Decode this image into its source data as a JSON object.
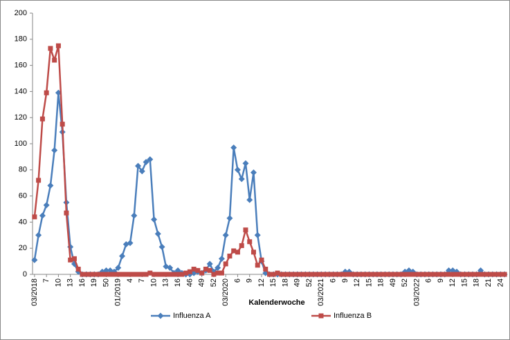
{
  "chart_data": {
    "type": "line",
    "x_label": "Kalenderwoche",
    "categories": [
      "03/2018",
      null,
      null,
      "7",
      null,
      null,
      "10",
      null,
      null,
      "13",
      null,
      null,
      "16",
      null,
      null,
      "19",
      null,
      null,
      "50",
      null,
      null,
      "01/2019",
      null,
      null,
      "4",
      null,
      null,
      "7",
      null,
      null,
      "10",
      null,
      null,
      "13",
      null,
      null,
      "16",
      null,
      null,
      "46",
      null,
      null,
      "49",
      null,
      null,
      "52",
      null,
      null,
      "03/2020",
      null,
      null,
      "6",
      null,
      null,
      "9",
      null,
      null,
      "12",
      null,
      null,
      "15",
      null,
      null,
      "18",
      null,
      null,
      "49",
      null,
      null,
      "52",
      null,
      null,
      "03/2021",
      null,
      null,
      "6",
      null,
      null,
      "9",
      null,
      null,
      "12",
      null,
      null,
      "15",
      null,
      null,
      "18",
      null,
      null,
      "49",
      null,
      null,
      "52",
      null,
      null,
      "03/2022",
      null,
      null,
      "6",
      null,
      null,
      "9",
      null,
      null,
      "12",
      null,
      null,
      "15",
      null,
      null,
      "18",
      null,
      null,
      "21",
      null,
      null,
      "24",
      null
    ],
    "series": [
      {
        "name": "Influenza A",
        "color": "#4a7ebb",
        "marker": "diamond",
        "values": [
          11,
          30,
          45,
          53,
          68,
          95,
          139,
          109,
          55,
          21,
          8,
          2,
          0,
          0,
          0,
          0,
          0,
          2,
          3,
          3,
          2,
          5,
          14,
          23,
          24,
          45,
          83,
          79,
          86,
          88,
          42,
          31,
          21,
          6,
          5,
          1,
          3,
          1,
          0,
          0,
          1,
          2,
          1,
          3,
          8,
          2,
          5,
          12,
          30,
          43,
          97,
          80,
          73,
          85,
          57,
          78,
          30,
          10,
          1,
          0,
          0,
          0,
          0,
          0,
          0,
          0,
          0,
          0,
          0,
          0,
          0,
          0,
          0,
          0,
          0,
          0,
          0,
          0,
          2,
          2,
          0,
          0,
          0,
          0,
          0,
          0,
          0,
          0,
          0,
          0,
          0,
          0,
          0,
          2,
          3,
          2,
          0,
          0,
          0,
          0,
          0,
          0,
          0,
          0,
          3,
          3,
          2,
          0,
          0,
          0,
          0,
          0,
          3,
          0,
          0,
          0,
          0,
          0,
          0
        ]
      },
      {
        "name": "Influenza B",
        "color": "#be4b48",
        "marker": "square",
        "values": [
          44,
          72,
          119,
          139,
          173,
          164,
          175,
          115,
          47,
          11,
          12,
          4,
          0,
          0,
          0,
          0,
          0,
          0,
          0,
          0,
          0,
          0,
          0,
          0,
          0,
          0,
          0,
          0,
          0,
          1,
          0,
          0,
          0,
          0,
          0,
          0,
          0,
          0,
          1,
          2,
          4,
          3,
          1,
          4,
          3,
          0,
          1,
          1,
          8,
          14,
          18,
          17,
          22,
          34,
          25,
          17,
          7,
          11,
          4,
          0,
          0,
          1,
          0,
          0,
          0,
          0,
          0,
          0,
          0,
          0,
          0,
          0,
          0,
          0,
          0,
          0,
          0,
          0,
          0,
          0,
          0,
          0,
          0,
          0,
          0,
          0,
          0,
          0,
          0,
          0,
          0,
          0,
          0,
          0,
          0,
          0,
          0,
          0,
          0,
          0,
          0,
          0,
          0,
          0,
          0,
          0,
          0,
          0,
          0,
          0,
          0,
          0,
          0,
          0,
          0,
          0,
          0,
          0,
          0
        ]
      }
    ],
    "ylim": [
      0,
      200
    ],
    "yticks": [
      0,
      20,
      40,
      60,
      80,
      100,
      120,
      140,
      160,
      180,
      200
    ],
    "grid": false,
    "legend": "bottom"
  }
}
